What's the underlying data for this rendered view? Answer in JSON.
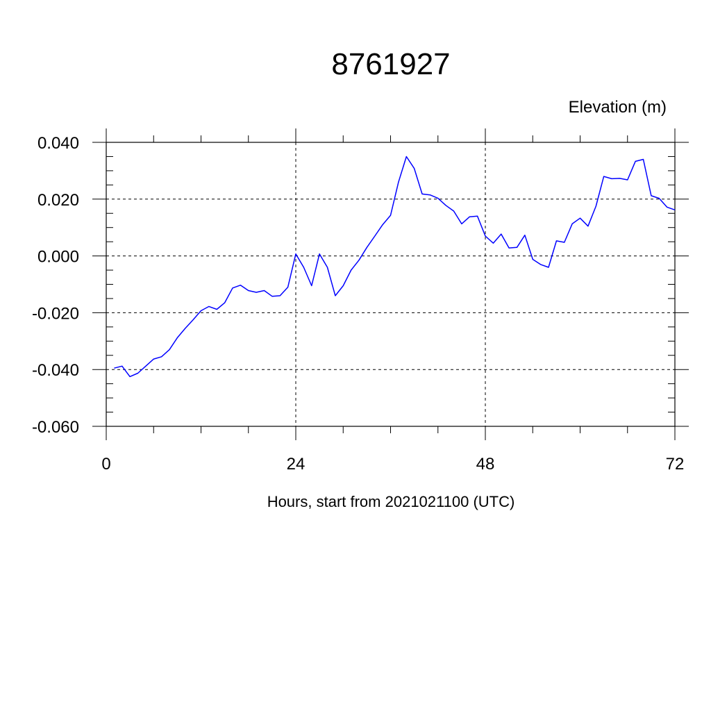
{
  "chart_data": {
    "type": "line",
    "title": "8761927",
    "ylabel": "Elevation (m)",
    "xlabel": "Hours, start from 2021021100 (UTC)",
    "xlim": [
      0,
      72
    ],
    "ylim": [
      -0.06,
      0.04
    ],
    "x_ticks": [
      0,
      24,
      48,
      72
    ],
    "x_tick_labels": [
      "0",
      "24",
      "48",
      "72"
    ],
    "y_ticks": [
      -0.06,
      -0.04,
      -0.02,
      0.0,
      0.02,
      0.04
    ],
    "y_tick_labels": [
      "-0.060",
      "-0.040",
      "-0.020",
      "0.000",
      "0.020",
      "0.040"
    ],
    "grid": true,
    "line_color": "#0000ff",
    "series": [
      {
        "x": [
          1,
          2,
          3,
          4,
          5,
          6,
          7,
          8,
          9,
          10,
          11,
          12,
          13,
          14,
          15,
          16,
          17,
          18,
          19,
          20,
          21,
          22,
          23,
          24,
          25,
          26,
          27,
          28,
          29,
          30,
          31,
          32,
          33,
          34,
          35,
          36,
          37,
          38,
          39,
          40,
          41,
          42,
          43,
          44,
          45,
          46,
          47,
          48,
          49,
          50,
          51,
          52,
          53,
          54,
          55,
          56,
          57,
          58,
          59,
          60,
          61,
          62,
          63,
          64,
          65,
          66,
          67,
          68,
          69,
          70,
          71,
          72
        ],
        "values": [
          -0.0395,
          -0.0388,
          -0.0425,
          -0.0413,
          -0.0388,
          -0.0363,
          -0.0355,
          -0.033,
          -0.0288,
          -0.0255,
          -0.0225,
          -0.0193,
          -0.0178,
          -0.0188,
          -0.0165,
          -0.0113,
          -0.0103,
          -0.0122,
          -0.0128,
          -0.0122,
          -0.0142,
          -0.014,
          -0.011,
          0.0007,
          -0.004,
          -0.0105,
          0.0007,
          -0.004,
          -0.014,
          -0.0105,
          -0.005,
          -0.0015,
          0.003,
          0.007,
          0.011,
          0.0143,
          0.026,
          0.035,
          0.0308,
          0.0218,
          0.0215,
          0.0203,
          0.0178,
          0.0158,
          0.0113,
          0.0138,
          0.014,
          0.007,
          0.0045,
          0.0077,
          0.0028,
          0.003,
          0.0073,
          -0.0012,
          -0.003,
          -0.004,
          0.0053,
          0.0048,
          0.0113,
          0.0133,
          0.0105,
          0.0175,
          0.028,
          0.0272,
          0.0273,
          0.0268,
          0.0333,
          0.034,
          0.0212,
          0.0203,
          0.0172,
          0.0162
        ]
      }
    ]
  }
}
